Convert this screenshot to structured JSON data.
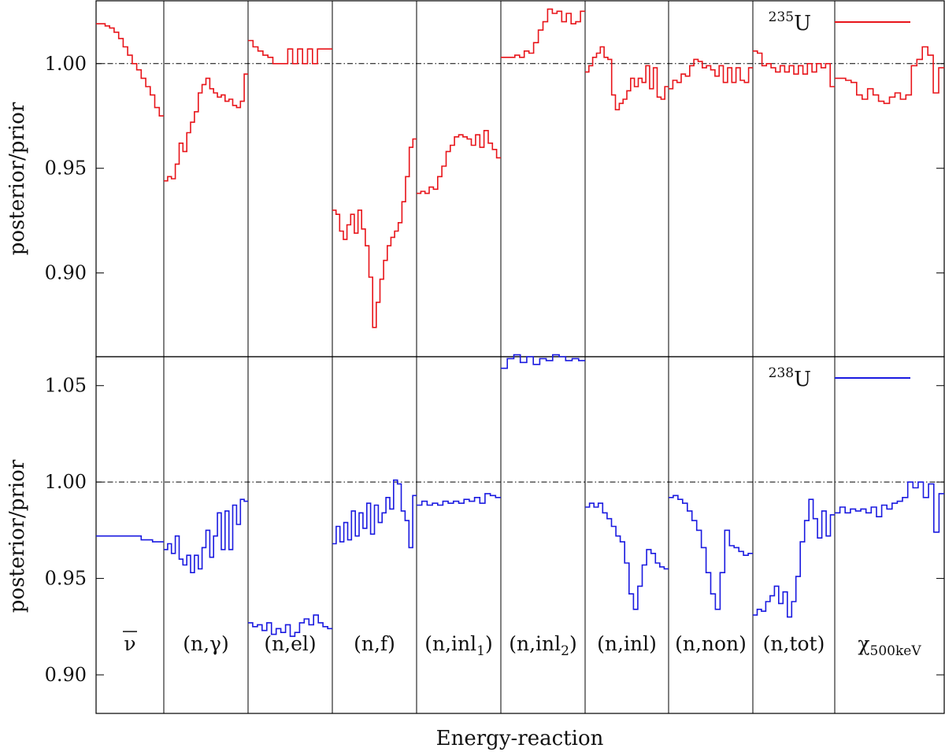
{
  "chart_data": [
    {
      "type": "line",
      "panel": "top",
      "ylabel": "posterior/prior",
      "xlabel": "",
      "ylim": [
        0.86,
        1.03
      ],
      "yticks": [
        0.9,
        0.95,
        1.0
      ],
      "ytick_labels": [
        "0.90",
        "0.95",
        "1.00"
      ],
      "reference_line": 1.0,
      "grid": false,
      "legend": {
        "isotope_mass": "235",
        "isotope_symbol": "U",
        "placement": "top-right"
      },
      "series": [
        {
          "isotope": "235U",
          "color": "#e8141a",
          "regions": [
            [
              1.019,
              1.019,
              1.018,
              1.017,
              1.015,
              1.012,
              1.008,
              1.004,
              1.0,
              0.997,
              0.993,
              0.989,
              0.985,
              0.979,
              0.975
            ],
            [
              0.944,
              0.946,
              0.945,
              0.952,
              0.962,
              0.958,
              0.967,
              0.972,
              0.977,
              0.986,
              0.99,
              0.993,
              0.988,
              0.986,
              0.984,
              0.985,
              0.982,
              0.983,
              0.98,
              0.979,
              0.982,
              0.995
            ],
            [
              1.011,
              1.008,
              1.006,
              1.004,
              1.003,
              1.0,
              1.0,
              1.0,
              1.007,
              1.0,
              1.007,
              1.0,
              1.007,
              1.0,
              1.007,
              1.007,
              1.007
            ],
            [
              0.93,
              0.928,
              0.92,
              0.916,
              0.923,
              0.928,
              0.919,
              0.93,
              0.921,
              0.913,
              0.898,
              0.874,
              0.886,
              0.897,
              0.906,
              0.913,
              0.917,
              0.92,
              0.924,
              0.934,
              0.946,
              0.96,
              0.964
            ],
            [
              0.938,
              0.939,
              0.938,
              0.941,
              0.94,
              0.946,
              0.951,
              0.958,
              0.961,
              0.965,
              0.966,
              0.965,
              0.964,
              0.961,
              0.966,
              0.96,
              0.968,
              0.962,
              0.959,
              0.955
            ],
            [
              1.003,
              1.003,
              1.003,
              1.004,
              1.003,
              1.006,
              1.005,
              1.01,
              1.016,
              1.02,
              1.026,
              1.024,
              1.025,
              1.02,
              1.024,
              1.019,
              1.02,
              1.025
            ],
            [
              0.996,
              0.999,
              1.003,
              1.005,
              1.008,
              1.003,
              1.002,
              0.985,
              0.978,
              0.981,
              0.983,
              0.987,
              0.993,
              0.989,
              0.993,
              0.991,
              0.999,
              0.988,
              0.998,
              0.984,
              0.983,
              0.989
            ],
            [
              0.988,
              0.992,
              0.991,
              0.995,
              0.994,
              0.999,
              1.002,
              1.001,
              0.998,
              0.999,
              0.997,
              0.994,
              0.999,
              0.991,
              0.998,
              0.991,
              0.998,
              0.992,
              0.991,
              0.998
            ],
            [
              1.006,
              1.005,
              0.999,
              1.0,
              0.998,
              0.996,
              0.999,
              0.996,
              0.999,
              0.995,
              0.999,
              0.995,
              1.0,
              0.996,
              1.0,
              0.998,
              1.0,
              0.989
            ],
            [
              0.993,
              0.993,
              0.992,
              0.991,
              0.985,
              0.983,
              0.988,
              0.985,
              0.982,
              0.981,
              0.984,
              0.986,
              0.983,
              0.985,
              0.999,
              1.002,
              1.008,
              1.004,
              0.986,
              0.998
            ]
          ]
        }
      ]
    },
    {
      "type": "line",
      "panel": "bottom",
      "ylabel": "posterior/prior",
      "xlabel": "Energy-reaction",
      "ylim": [
        0.88,
        1.065
      ],
      "yticks": [
        0.9,
        0.95,
        1.0,
        1.05
      ],
      "ytick_labels": [
        "0.90",
        "0.95",
        "1.00",
        "1.05"
      ],
      "reference_line": 1.0,
      "grid": false,
      "legend": {
        "isotope_mass": "238",
        "isotope_symbol": "U",
        "placement": "top-right"
      },
      "categories": [
        {
          "base": "ν",
          "sub": "",
          "tail": ""
        },
        {
          "base": "(n,γ)",
          "sub": "",
          "tail": ""
        },
        {
          "base": "(n,el)",
          "sub": "",
          "tail": ""
        },
        {
          "base": "(n,f)",
          "sub": "",
          "tail": ""
        },
        {
          "base": "(n,inl",
          "sub": "1",
          "tail": ")"
        },
        {
          "base": "(n,inl",
          "sub": "2",
          "tail": ")"
        },
        {
          "base": "(n,inl)",
          "sub": "",
          "tail": ""
        },
        {
          "base": "(n,non)",
          "sub": "",
          "tail": ""
        },
        {
          "base": "(n,tot)",
          "sub": "",
          "tail": ""
        },
        {
          "base": "χ",
          "sub": "500keV",
          "tail": ""
        }
      ],
      "series": [
        {
          "isotope": "238U",
          "color": "#1a1ae0",
          "regions": [
            [
              0.972,
              0.972,
              0.972,
              0.972,
              0.97,
              0.969
            ],
            [
              0.965,
              0.968,
              0.963,
              0.972,
              0.96,
              0.957,
              0.962,
              0.953,
              0.962,
              0.955,
              0.966,
              0.975,
              0.961,
              0.972,
              0.984,
              0.965,
              0.985,
              0.965,
              0.988,
              0.978,
              0.991,
              0.99
            ],
            [
              0.927,
              0.925,
              0.926,
              0.923,
              0.927,
              0.921,
              0.924,
              0.922,
              0.926,
              0.92,
              0.922,
              0.927,
              0.929,
              0.926,
              0.931,
              0.927,
              0.925,
              0.924
            ],
            [
              0.968,
              0.977,
              0.969,
              0.979,
              0.97,
              0.985,
              0.972,
              0.984,
              0.976,
              0.989,
              0.973,
              0.988,
              0.979,
              0.984,
              0.992,
              0.986,
              1.001,
              0.999,
              0.985,
              0.98,
              0.966,
              0.993
            ],
            [
              0.988,
              0.99,
              0.988,
              0.989,
              0.988,
              0.99,
              0.989,
              0.99,
              0.989,
              0.991,
              0.99,
              0.992,
              0.989,
              0.994,
              0.993,
              0.992
            ],
            [
              1.059,
              1.064,
              1.066,
              1.062,
              1.065,
              1.061,
              1.064,
              1.063,
              1.066,
              1.065,
              1.063,
              1.064,
              1.063
            ],
            [
              0.987,
              0.989,
              0.987,
              0.989,
              0.984,
              0.981,
              0.977,
              0.972,
              0.969,
              0.958,
              0.942,
              0.934,
              0.946,
              0.957,
              0.965,
              0.963,
              0.958,
              0.956,
              0.955
            ],
            [
              0.992,
              0.993,
              0.991,
              0.989,
              0.985,
              0.98,
              0.975,
              0.966,
              0.953,
              0.942,
              0.934,
              0.953,
              0.975,
              0.967,
              0.966,
              0.964,
              0.962,
              0.963
            ],
            [
              0.931,
              0.934,
              0.933,
              0.938,
              0.941,
              0.946,
              0.937,
              0.943,
              0.93,
              0.938,
              0.951,
              0.969,
              0.98,
              0.991,
              0.981,
              0.971,
              0.985,
              0.972,
              0.983
            ],
            [
              0.984,
              0.987,
              0.984,
              0.986,
              0.985,
              0.986,
              0.984,
              0.987,
              0.982,
              0.988,
              0.986,
              0.989,
              0.99,
              0.992,
              1.0,
              0.997,
              1.0,
              0.992,
              0.999,
              0.974,
              0.994
            ]
          ]
        }
      ]
    }
  ]
}
